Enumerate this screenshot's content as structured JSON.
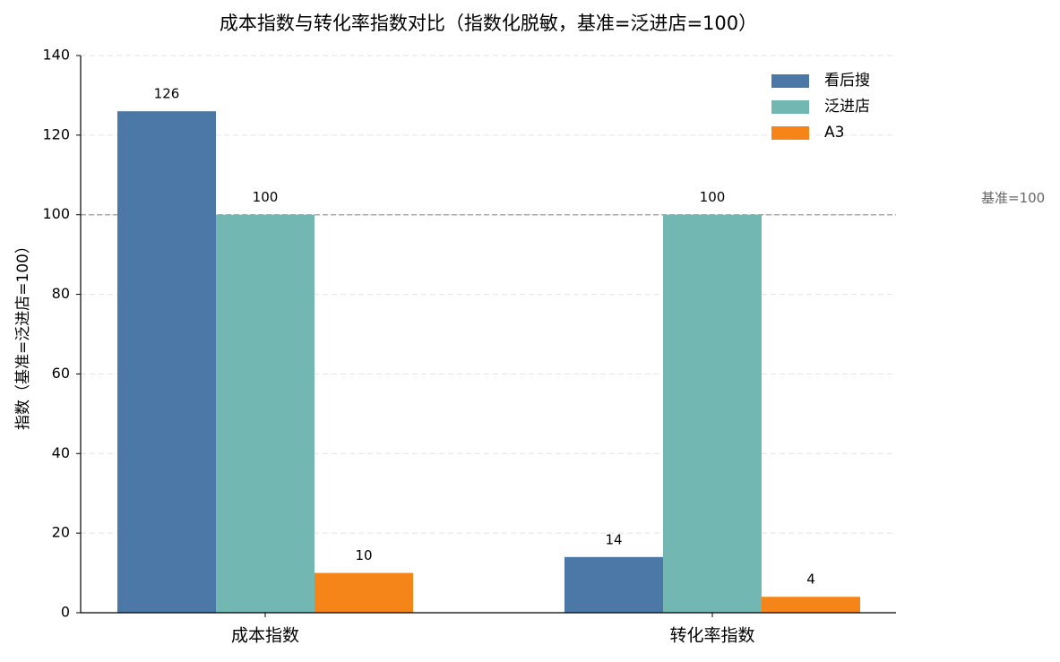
{
  "chart_data": {
    "type": "bar",
    "title": "成本指数与转化率指数对比（指数化脱敏，基准=泛进店=100）",
    "y_label": "指数（基准=泛进店=100）",
    "categories": [
      "成本指数",
      "转化率指数"
    ],
    "series": [
      {
        "name": "看后搜",
        "color": "#4c78a8",
        "values": [
          126,
          14
        ]
      },
      {
        "name": "泛进店",
        "color": "#72b7b2",
        "values": [
          100,
          100
        ]
      },
      {
        "name": "A3",
        "color": "#f58518",
        "values": [
          10,
          4
        ]
      }
    ],
    "ylim": [
      0,
      140
    ],
    "yticks": [
      0,
      20,
      40,
      60,
      80,
      100,
      120,
      140
    ],
    "grid": true,
    "legend": "upper right",
    "reference_line": {
      "value": 100,
      "label": "基准=100"
    }
  }
}
